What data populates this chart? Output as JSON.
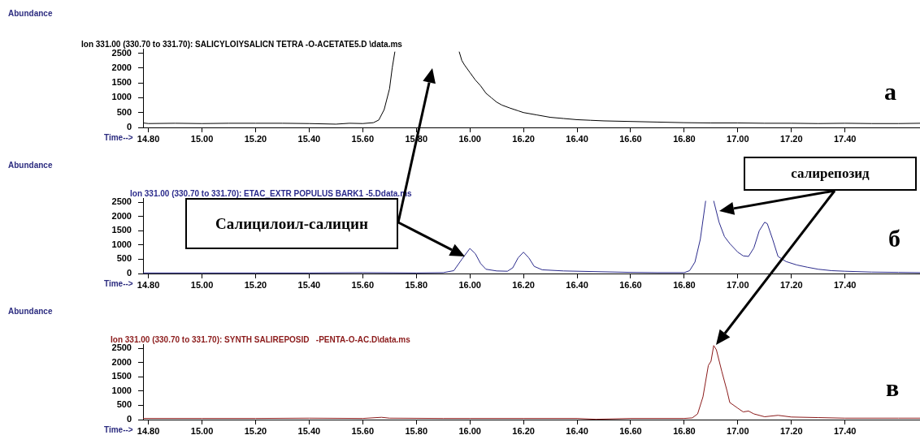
{
  "chart_data": [
    {
      "type": "line",
      "title": "Ion 331.00 (330.70 to 331.70): SALICYLOIYSALICN TETRA -O-ACETATE5.D \\data.ms",
      "xlabel": "Time-->",
      "ylabel": "Abundance",
      "marker": "none",
      "annotations": [
        "а"
      ],
      "x": [
        14.78,
        14.8,
        14.9,
        15.0,
        15.1,
        15.2,
        15.3,
        15.4,
        15.5,
        15.55,
        15.6,
        15.64,
        15.66,
        15.68,
        15.7,
        15.71,
        15.72,
        15.8,
        15.96,
        15.97,
        15.98,
        16.0,
        16.02,
        16.04,
        16.06,
        16.08,
        16.1,
        16.12,
        16.15,
        16.18,
        16.2,
        16.25,
        16.3,
        16.35,
        16.4,
        16.45,
        16.5,
        16.6,
        16.7,
        16.8,
        16.9,
        17.0,
        17.1,
        17.2,
        17.3,
        17.4,
        17.5,
        17.6,
        17.68
      ],
      "series": [
        {
          "color": "#000000",
          "values": [
            150,
            130,
            140,
            130,
            140,
            140,
            140,
            130,
            110,
            140,
            130,
            160,
            250,
            600,
            1300,
            2000,
            2550,
            null,
            2550,
            2250,
            2100,
            1850,
            1600,
            1400,
            1150,
            1000,
            850,
            750,
            650,
            560,
            500,
            420,
            340,
            300,
            260,
            240,
            220,
            200,
            180,
            160,
            150,
            150,
            140,
            140,
            130,
            140,
            130,
            130,
            140
          ]
        }
      ],
      "xlim": [
        14.78,
        17.68
      ],
      "ylim": [
        0,
        2650
      ],
      "xticks": [
        {
          "value": 14.8,
          "label": "14.80"
        },
        {
          "value": 15.0,
          "label": "15.00"
        },
        {
          "value": 15.2,
          "label": "15.20"
        },
        {
          "value": 15.4,
          "label": "15.40"
        },
        {
          "value": 15.6,
          "label": "15.60"
        },
        {
          "value": 15.8,
          "label": "15.80"
        },
        {
          "value": 16.0,
          "label": "16.00"
        },
        {
          "value": 16.2,
          "label": "16.20"
        },
        {
          "value": 16.4,
          "label": "16.40"
        },
        {
          "value": 16.6,
          "label": "16.60"
        },
        {
          "value": 16.8,
          "label": "16.80"
        },
        {
          "value": 17.0,
          "label": "17.00"
        },
        {
          "value": 17.2,
          "label": "17.20"
        },
        {
          "value": 17.4,
          "label": "17.40"
        }
      ],
      "yticks": [
        0,
        500,
        1000,
        1500,
        2000,
        2500
      ]
    },
    {
      "type": "line",
      "title": "Ion 331.00 (330.70 to 331.70): ETAC_EXTR POPULUS BARK1 -5.Ddata.ms",
      "xlabel": "Time-->",
      "ylabel": "Abundance",
      "marker": "none",
      "annotations": [
        "Салицилоил-салицин",
        "салирепозид",
        "б"
      ],
      "x": [
        14.78,
        15.0,
        15.2,
        15.4,
        15.6,
        15.8,
        15.9,
        15.94,
        15.97,
        16.0,
        16.02,
        16.04,
        16.06,
        16.1,
        16.14,
        16.16,
        16.18,
        16.2,
        16.22,
        16.24,
        16.27,
        16.35,
        16.5,
        16.6,
        16.7,
        16.8,
        16.82,
        16.84,
        16.86,
        16.88,
        16.895,
        16.91,
        16.93,
        16.95,
        16.97,
        17.0,
        17.02,
        17.04,
        17.06,
        17.08,
        17.1,
        17.11,
        17.13,
        17.15,
        17.18,
        17.22,
        17.26,
        17.3,
        17.35,
        17.4,
        17.5,
        17.6,
        17.68
      ],
      "series": [
        {
          "color": "#2b2b8c",
          "values": [
            20,
            20,
            20,
            20,
            30,
            20,
            30,
            100,
            500,
            880,
            700,
            350,
            150,
            90,
            80,
            200,
            550,
            750,
            550,
            250,
            130,
            90,
            60,
            40,
            30,
            30,
            100,
            400,
            1200,
            2550,
            null,
            2550,
            1800,
            1300,
            1050,
            750,
            620,
            600,
            900,
            1500,
            1800,
            1750,
            1200,
            600,
            420,
            300,
            220,
            150,
            100,
            80,
            50,
            40,
            30
          ]
        }
      ],
      "xlim": [
        14.78,
        17.68
      ],
      "ylim": [
        0,
        2650
      ],
      "xticks": [
        {
          "value": 14.8,
          "label": "14.80"
        },
        {
          "value": 15.0,
          "label": "15.00"
        },
        {
          "value": 15.2,
          "label": "15.20"
        },
        {
          "value": 15.4,
          "label": "15.40"
        },
        {
          "value": 15.6,
          "label": "15.60"
        },
        {
          "value": 15.8,
          "label": "15.80"
        },
        {
          "value": 16.0,
          "label": "16.00"
        },
        {
          "value": 16.2,
          "label": "16.20"
        },
        {
          "value": 16.4,
          "label": "16.40"
        },
        {
          "value": 16.6,
          "label": "16.60"
        },
        {
          "value": 16.8,
          "label": "16.80"
        },
        {
          "value": 17.0,
          "label": "17.00"
        },
        {
          "value": 17.2,
          "label": "17.20"
        },
        {
          "value": 17.4,
          "label": "17.40"
        }
      ],
      "yticks": [
        0,
        500,
        1000,
        1500,
        2000,
        2500
      ]
    },
    {
      "type": "line",
      "title": "Ion 331.00 (330.70 to 331.70): SYNTH SALIREPOSID   -PENTA-O-AC.D\\data.ms",
      "xlabel": "Time-->",
      "ylabel": "Abundance",
      "marker": "none",
      "annotations": [
        "в"
      ],
      "x": [
        14.78,
        15.0,
        15.2,
        15.4,
        15.6,
        15.67,
        15.7,
        15.9,
        16.0,
        16.2,
        16.4,
        16.47,
        16.6,
        16.8,
        16.83,
        16.85,
        16.87,
        16.89,
        16.9,
        16.91,
        16.92,
        16.94,
        16.96,
        16.97,
        17.0,
        17.02,
        17.04,
        17.06,
        17.1,
        17.15,
        17.2,
        17.3,
        17.4,
        17.6,
        17.68
      ],
      "series": [
        {
          "color": "#8b1a1a",
          "values": [
            40,
            40,
            40,
            50,
            40,
            80,
            50,
            40,
            40,
            40,
            40,
            10,
            40,
            40,
            60,
            200,
            800,
            1900,
            2050,
            2600,
            2450,
            1700,
            1000,
            600,
            400,
            270,
            300,
            200,
            100,
            150,
            90,
            70,
            50,
            50,
            50
          ]
        }
      ],
      "xlim": [
        14.78,
        17.68
      ],
      "ylim": [
        0,
        2650
      ],
      "xticks": [
        {
          "value": 14.8,
          "label": "14.80"
        },
        {
          "value": 15.0,
          "label": "15.00"
        },
        {
          "value": 15.2,
          "label": "15.20"
        },
        {
          "value": 15.4,
          "label": "15.40"
        },
        {
          "value": 15.6,
          "label": "15.60"
        },
        {
          "value": 15.8,
          "label": "15.80"
        },
        {
          "value": 16.0,
          "label": "16.00"
        },
        {
          "value": 16.2,
          "label": "16.20"
        },
        {
          "value": 16.4,
          "label": "16.40"
        },
        {
          "value": 16.6,
          "label": "16.60"
        },
        {
          "value": 16.8,
          "label": "16.80"
        },
        {
          "value": 17.0,
          "label": "17.00"
        },
        {
          "value": 17.2,
          "label": "17.20"
        },
        {
          "value": 17.4,
          "label": "17.40"
        }
      ],
      "yticks": [
        0,
        500,
        1000,
        1500,
        2000,
        2500
      ]
    }
  ]
}
